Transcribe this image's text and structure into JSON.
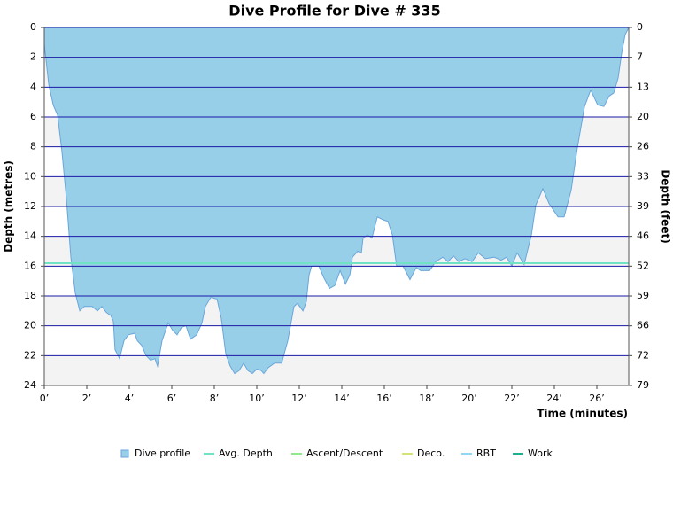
{
  "chart_data": {
    "type": "area",
    "title": "Dive Profile for Dive # 335",
    "y_label": "Depth (metres)",
    "y2_label": "Depth (feet)",
    "x_label": "Time (minutes)",
    "inverted_y": true,
    "grid": true,
    "x": [
      0,
      0,
      0.21,
      0.42,
      0.63,
      0.83,
      1.04,
      1.25,
      1.46,
      1.67,
      1.88,
      2.25,
      2.5,
      2.71,
      2.92,
      3.13,
      3.25,
      3.33,
      3.54,
      3.75,
      3.96,
      4.25,
      4.38,
      4.58,
      4.79,
      5.0,
      5.21,
      5.33,
      5.54,
      5.83,
      6.04,
      6.25,
      6.46,
      6.67,
      6.88,
      7.17,
      7.42,
      7.58,
      7.83,
      8.13,
      8.33,
      8.54,
      8.75,
      8.96,
      9.17,
      9.38,
      9.58,
      9.79,
      10.0,
      10.21,
      10.33,
      10.54,
      10.83,
      11.17,
      11.46,
      11.75,
      11.92,
      12.17,
      12.33,
      12.46,
      12.58,
      12.92,
      13.13,
      13.42,
      13.67,
      13.92,
      14.17,
      14.38,
      14.5,
      14.75,
      14.92,
      15.0,
      15.21,
      15.42,
      15.67,
      15.96,
      16.17,
      16.38,
      16.58,
      16.88,
      17.21,
      17.5,
      17.71,
      18.13,
      18.42,
      18.75,
      19.0,
      19.25,
      19.5,
      19.79,
      20.13,
      20.42,
      20.75,
      21.17,
      21.5,
      21.75,
      22.0,
      22.25,
      22.58,
      22.92,
      23.13,
      23.46,
      23.75,
      24.17,
      24.46,
      24.79,
      25.08,
      25.42,
      25.71,
      26.04,
      26.33,
      26.58,
      26.79,
      27.0,
      27.17,
      27.33,
      27.5
    ],
    "series": [
      {
        "name": "Dive profile",
        "color": "#97cfe9",
        "stroke": "#6aa6da",
        "values": [
          0,
          1.1,
          3.8,
          5.2,
          5.9,
          8.3,
          11.5,
          15.4,
          17.8,
          19.0,
          18.7,
          18.7,
          19.0,
          18.7,
          19.1,
          19.3,
          19.7,
          21.6,
          22.2,
          21.0,
          20.6,
          20.5,
          21.0,
          21.3,
          22.0,
          22.3,
          22.2,
          22.7,
          21.0,
          19.8,
          20.3,
          20.6,
          20.1,
          20.0,
          20.9,
          20.6,
          19.8,
          18.7,
          18.1,
          18.2,
          19.5,
          21.9,
          22.7,
          23.2,
          23.0,
          22.5,
          23.0,
          23.2,
          22.9,
          23.0,
          23.2,
          22.8,
          22.5,
          22.5,
          21.0,
          18.7,
          18.5,
          19.0,
          18.4,
          16.6,
          16.0,
          16.0,
          16.7,
          17.5,
          17.3,
          16.3,
          17.2,
          16.6,
          15.4,
          15.0,
          15.1,
          14.1,
          13.9,
          14.1,
          12.7,
          12.9,
          13.0,
          13.9,
          16.0,
          16.0,
          16.9,
          16.1,
          16.3,
          16.3,
          15.7,
          15.4,
          15.7,
          15.3,
          15.7,
          15.5,
          15.7,
          15.1,
          15.5,
          15.4,
          15.6,
          15.4,
          16.0,
          15.1,
          15.9,
          13.9,
          11.9,
          10.8,
          11.8,
          12.7,
          12.7,
          10.9,
          8.1,
          5.3,
          4.2,
          5.2,
          5.3,
          4.6,
          4.4,
          3.4,
          1.7,
          0.5,
          0
        ]
      },
      {
        "name": "Avg. Depth",
        "color": "#6fe3c3",
        "value": 15.8
      },
      {
        "name": "Ascent/Descent",
        "color": "#8fe88a"
      },
      {
        "name": "Deco.",
        "color": "#d5e274"
      },
      {
        "name": "RBT",
        "color": "#8fd6f2"
      },
      {
        "name": "Work",
        "color": "#1fae8c"
      }
    ],
    "xlim": [
      0,
      27.5
    ],
    "xticks": [
      {
        "value": 0,
        "label": "0’"
      },
      {
        "value": 2,
        "label": "2’"
      },
      {
        "value": 4,
        "label": "4’"
      },
      {
        "value": 6,
        "label": "6’"
      },
      {
        "value": 8,
        "label": "8’"
      },
      {
        "value": 10,
        "label": "10’"
      },
      {
        "value": 12,
        "label": "12’"
      },
      {
        "value": 14,
        "label": "14’"
      },
      {
        "value": 16,
        "label": "16’"
      },
      {
        "value": 18,
        "label": "18’"
      },
      {
        "value": 20,
        "label": "20’"
      },
      {
        "value": 22,
        "label": "22’"
      },
      {
        "value": 24,
        "label": "24’"
      },
      {
        "value": 26,
        "label": "26’"
      }
    ],
    "ylim": [
      0,
      24
    ],
    "yticks": [
      0,
      2,
      4,
      6,
      8,
      10,
      12,
      14,
      16,
      18,
      20,
      22,
      24
    ],
    "y2lim": [
      0,
      78.74
    ],
    "y2ticks": [
      0,
      {
        "value": 6.56,
        "label": "7"
      },
      {
        "value": 13.12,
        "label": "13"
      },
      {
        "value": 19.69,
        "label": "20"
      },
      {
        "value": 26.25,
        "label": "26"
      },
      {
        "value": 32.81,
        "label": "33"
      },
      {
        "value": 39.37,
        "label": "39"
      },
      {
        "value": 45.93,
        "label": "46"
      },
      {
        "value": 52.49,
        "label": "52"
      },
      {
        "value": 59.06,
        "label": "59"
      },
      {
        "value": 65.62,
        "label": "66"
      },
      {
        "value": 72.18,
        "label": "72"
      },
      {
        "value": 78.74,
        "label": "79"
      }
    ]
  }
}
